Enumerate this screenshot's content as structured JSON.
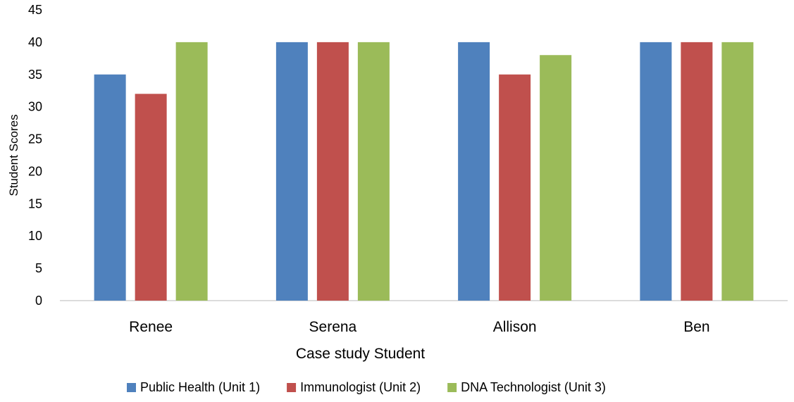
{
  "chart_data": {
    "type": "bar",
    "categories": [
      "Renee",
      "Serena",
      "Allison",
      "Ben"
    ],
    "series": [
      {
        "name": "Public Health (Unit 1)",
        "color": "#4F81BD",
        "values": [
          35,
          40,
          40,
          40
        ]
      },
      {
        "name": "Immunologist (Unit 2)",
        "color": "#C0504D",
        "values": [
          32,
          40,
          35,
          40
        ]
      },
      {
        "name": "DNA Technologist (Unit 3)",
        "color": "#9BBB59",
        "values": [
          40,
          40,
          38,
          40
        ]
      }
    ],
    "title": "",
    "xlabel": "Case study Student",
    "ylabel": "Student Scores",
    "ylim": [
      0,
      45
    ],
    "yticks": [
      "0",
      "5",
      "10",
      "15",
      "20",
      "25",
      "30",
      "35",
      "40",
      "45"
    ],
    "grid": false,
    "legend_position": "bottom"
  }
}
